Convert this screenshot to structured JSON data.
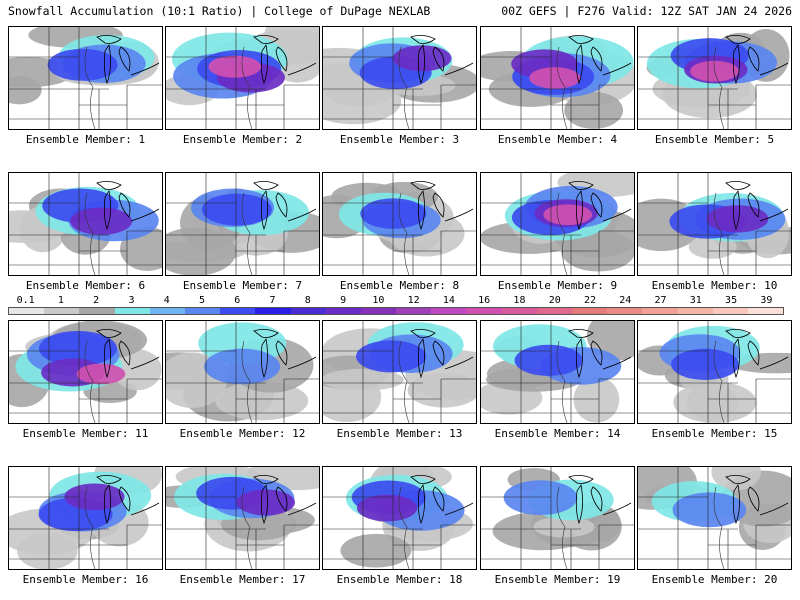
{
  "header": {
    "left": "Snowfall Accumulation (10:1 Ratio) | College of DuPage NEXLAB",
    "right": "00Z GEFS | F276 Valid: 12Z SAT JAN 24 2026"
  },
  "member_label_prefix": "Ensemble Member:",
  "members": [
    {
      "id": 1,
      "label": "Ensemble Member: 1",
      "snow_level": 0.55
    },
    {
      "id": 2,
      "label": "Ensemble Member: 2",
      "snow_level": 0.9
    },
    {
      "id": 3,
      "label": "Ensemble Member: 3",
      "snow_level": 0.6
    },
    {
      "id": 4,
      "label": "Ensemble Member: 4",
      "snow_level": 0.85
    },
    {
      "id": 5,
      "label": "Ensemble Member: 5",
      "snow_level": 0.75
    },
    {
      "id": 6,
      "label": "Ensemble Member: 6",
      "snow_level": 0.7
    },
    {
      "id": 7,
      "label": "Ensemble Member: 7",
      "snow_level": 0.55
    },
    {
      "id": 8,
      "label": "Ensemble Member: 8",
      "snow_level": 0.45
    },
    {
      "id": 9,
      "label": "Ensemble Member: 9",
      "snow_level": 0.75
    },
    {
      "id": 10,
      "label": "Ensemble Member: 10",
      "snow_level": 0.7
    },
    {
      "id": 11,
      "label": "Ensemble Member: 11",
      "snow_level": 0.75
    },
    {
      "id": 12,
      "label": "Ensemble Member: 12",
      "snow_level": 0.4
    },
    {
      "id": 13,
      "label": "Ensemble Member: 13",
      "snow_level": 0.55
    },
    {
      "id": 14,
      "label": "Ensemble Member: 14",
      "snow_level": 0.5
    },
    {
      "id": 15,
      "label": "Ensemble Member: 15",
      "snow_level": 0.5
    },
    {
      "id": 16,
      "label": "Ensemble Member: 16",
      "snow_level": 0.65
    },
    {
      "id": 17,
      "label": "Ensemble Member: 17",
      "snow_level": 0.6
    },
    {
      "id": 18,
      "label": "Ensemble Member: 18",
      "snow_level": 0.65
    },
    {
      "id": 19,
      "label": "Ensemble Member: 19",
      "snow_level": 0.35
    },
    {
      "id": 20,
      "label": "Ensemble Member: 20",
      "snow_level": 0.35
    }
  ],
  "color_scale": {
    "labels": [
      "0.1",
      "1",
      "2",
      "3",
      "4",
      "5",
      "6",
      "7",
      "8",
      "9",
      "10",
      "12",
      "14",
      "16",
      "18",
      "20",
      "22",
      "24",
      "27",
      "31",
      "35",
      "39"
    ],
    "colors": [
      "#e6e6e6",
      "#c8c8c8",
      "#a6a6a6",
      "#7fe6e6",
      "#6fb4f2",
      "#5a86f0",
      "#3c4cf0",
      "#2a1ee6",
      "#4b2bd2",
      "#6a2cc4",
      "#8530b8",
      "#a040b8",
      "#c048c0",
      "#d050b0",
      "#d85a9c",
      "#e0688c",
      "#e47a7a",
      "#ea8c86",
      "#f0a094",
      "#f4b4a6",
      "#f8c8bc",
      "#fce0d8"
    ]
  }
}
